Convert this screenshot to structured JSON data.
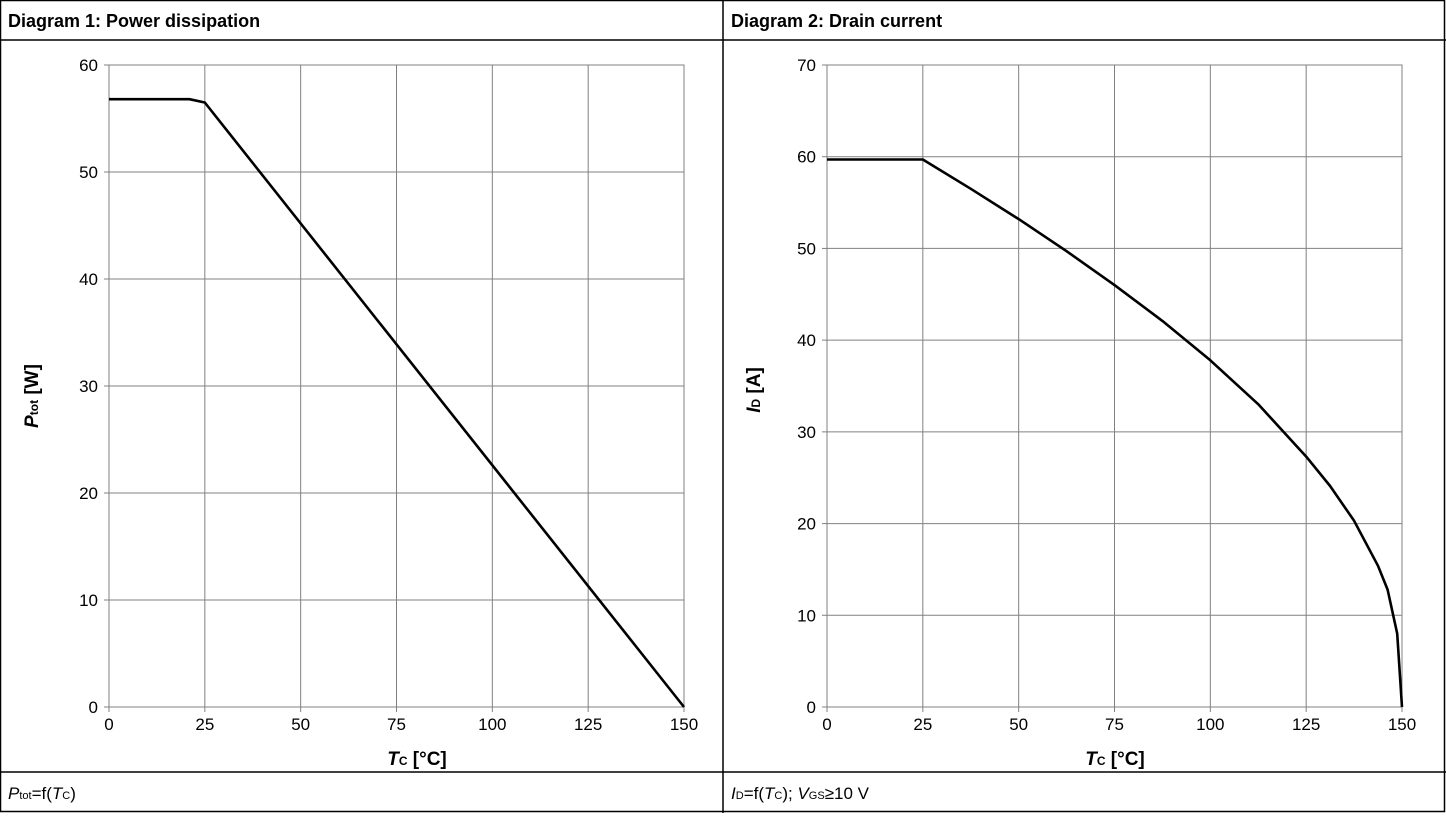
{
  "panels": [
    {
      "title": "Diagram 1: Power dissipation",
      "caption": {
        "main": "P",
        "sub1": "tot",
        "mid": "=f(",
        "italic2": "T",
        "sub2": "C",
        "tail": ")"
      },
      "ylabel": {
        "main": "P",
        "sub": "tot",
        "unit": " [W]"
      },
      "xlabel": {
        "main": "T",
        "sub": "C",
        "unit": " [°C]"
      }
    },
    {
      "title": "Diagram 2: Drain current",
      "caption": {
        "main": "I",
        "sub1": "D",
        "mid": "=f(",
        "italic2": "T",
        "sub2": "C",
        "mid2": "); ",
        "italic3": "V",
        "sub3": "GS",
        "tail": "≥10 V"
      },
      "ylabel": {
        "main": "I",
        "sub": "D",
        "unit": " [A]"
      },
      "xlabel": {
        "main": "T",
        "sub": "C",
        "unit": " [°C]"
      }
    }
  ],
  "chart_data": [
    {
      "type": "line",
      "title": "Diagram 1: Power dissipation",
      "xlabel": "TC [°C]",
      "ylabel": "Ptot [W]",
      "xlim": [
        0,
        150
      ],
      "ylim": [
        0,
        60
      ],
      "xticks": [
        0,
        25,
        50,
        75,
        100,
        125,
        150
      ],
      "yticks": [
        0,
        10,
        20,
        30,
        40,
        50,
        60
      ],
      "grid": true,
      "line_color": "#000000",
      "series": [
        {
          "x": [
            0,
            21,
            25,
            150
          ],
          "y": [
            56.8,
            56.8,
            56.5,
            0
          ]
        }
      ]
    },
    {
      "type": "line",
      "title": "Diagram 2: Drain current",
      "xlabel": "TC [°C]",
      "ylabel": "ID [A]",
      "xlim": [
        0,
        150
      ],
      "ylim": [
        0,
        70
      ],
      "xticks": [
        0,
        25,
        50,
        75,
        100,
        125,
        150
      ],
      "yticks": [
        0,
        10,
        20,
        30,
        40,
        50,
        60,
        70
      ],
      "grid": true,
      "line_color": "#000000",
      "series": [
        {
          "x": [
            0,
            25,
            37.5,
            50,
            62.5,
            75,
            87.5,
            100,
            112.5,
            125,
            131.25,
            137.5,
            143.75,
            146.25,
            148.75,
            150
          ],
          "y": [
            59.7,
            59.7,
            56.5,
            53.2,
            49.7,
            46.0,
            42.1,
            37.8,
            33.0,
            27.3,
            24.1,
            20.3,
            15.4,
            12.8,
            8.0,
            0
          ]
        }
      ]
    }
  ]
}
